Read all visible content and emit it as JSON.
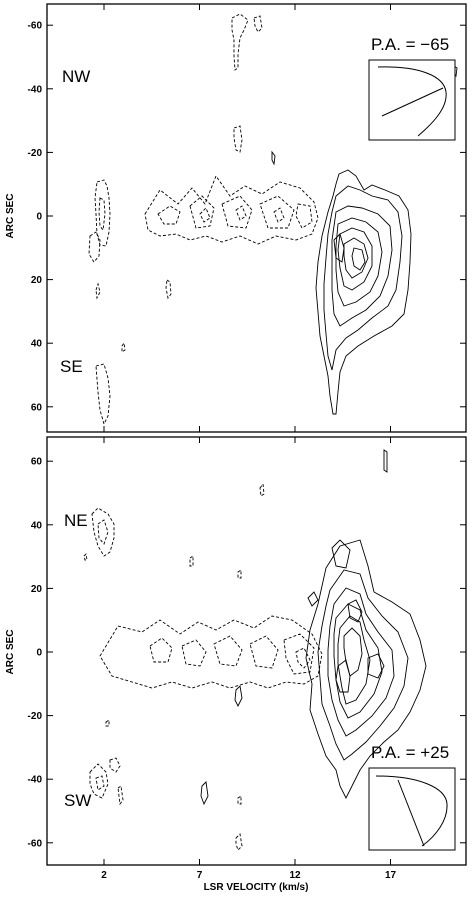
{
  "chart_data": [
    {
      "type": "contour",
      "xlabel": "",
      "ylabel": "ARC SEC",
      "xlim": [
        -0.3,
        20.8
      ],
      "ylim": [
        -66,
        66
      ],
      "y_inverted": true,
      "xticks": [
        2,
        7,
        12,
        17
      ],
      "yticks": [
        -60,
        -40,
        -20,
        0,
        20,
        40,
        60
      ],
      "ytick_labels": [
        "-60",
        "-40",
        "-20",
        "0",
        "20",
        "40",
        "60"
      ],
      "annotations": {
        "top": "NW",
        "bottom": "SE",
        "pa": "P.A. = −65"
      },
      "inset": {
        "position": "top-right"
      },
      "contours": {
        "dashed": [
          {
            "x": 1.3,
            "y": 12,
            "rx": 0.4,
            "ry": 9
          },
          {
            "x": 1.0,
            "y": -10,
            "rx": 0.3,
            "ry": 5
          },
          {
            "x": 5.3,
            "y": 0,
            "rx": 1.2,
            "ry": 9
          },
          {
            "x": 8.2,
            "y": 0,
            "rx": 2.3,
            "ry": 10
          },
          {
            "x": 11.0,
            "y": 0,
            "rx": 1.5,
            "ry": 10
          }
        ],
        "solid_peak": {
          "x": 15.2,
          "y": 12
        }
      }
    },
    {
      "type": "contour",
      "xlabel": "LSR VELOCITY (km/s)",
      "ylabel": "ARC SEC",
      "xlim": [
        -0.3,
        20.8
      ],
      "ylim": [
        -66,
        66
      ],
      "xticks": [
        2,
        7,
        12,
        17
      ],
      "xtick_labels": [
        "2",
        "7",
        "12",
        "17"
      ],
      "yticks": [
        -60,
        -40,
        -20,
        0,
        20,
        40,
        60
      ],
      "ytick_labels": [
        "-60",
        "-40",
        "-20",
        "0",
        "20",
        "40",
        "60"
      ],
      "annotations": {
        "top": "NE",
        "bottom": "SW",
        "pa": "P.A. = +25"
      },
      "inset": {
        "position": "bottom-right"
      },
      "contours": {
        "dashed": [
          {
            "x": 2.0,
            "y": 37,
            "rx": 0.7,
            "ry": 5
          },
          {
            "x": 4.9,
            "y": 0,
            "rx": 2.5,
            "ry": 6
          },
          {
            "x": 8.0,
            "y": -2,
            "rx": 2.2,
            "ry": 7
          },
          {
            "x": 11.2,
            "y": 0,
            "rx": 1.5,
            "ry": 7
          }
        ],
        "solid_peak": {
          "x": 15.2,
          "y": 6
        }
      }
    }
  ]
}
